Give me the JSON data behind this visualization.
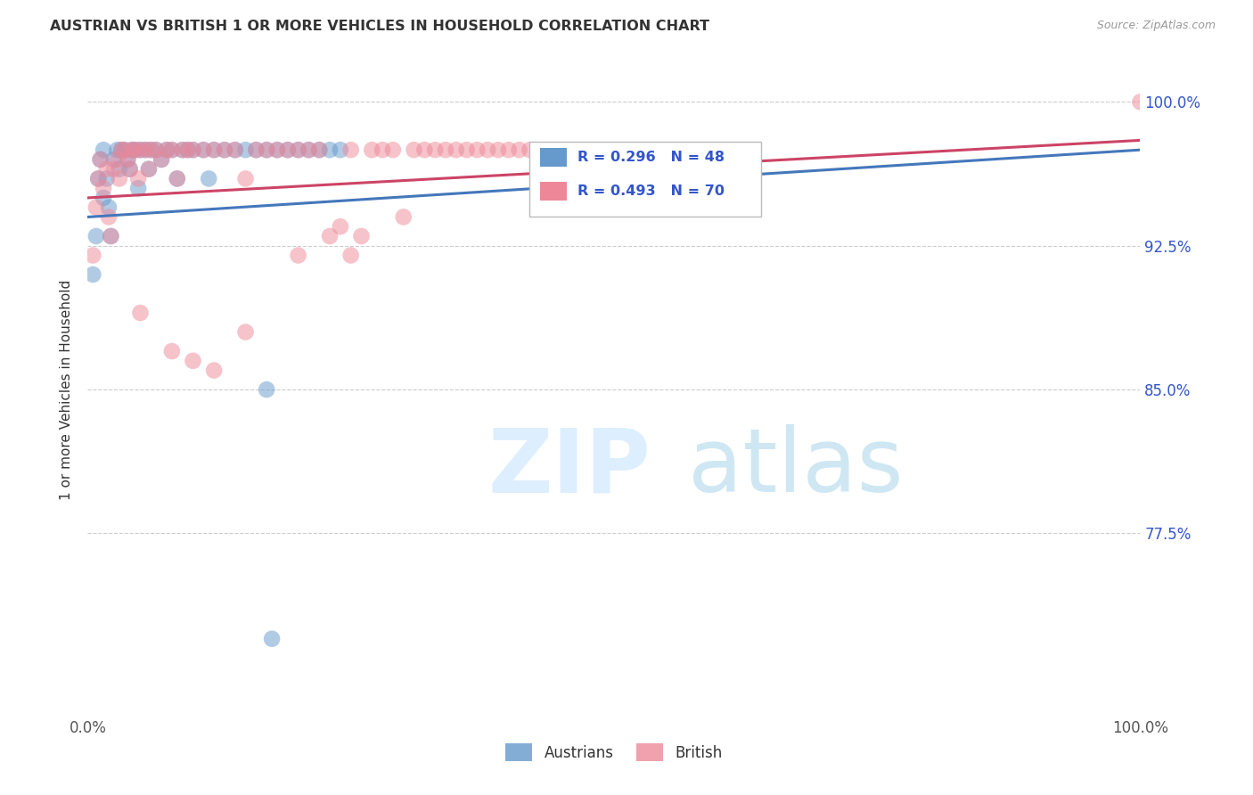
{
  "title": "AUSTRIAN VS BRITISH 1 OR MORE VEHICLES IN HOUSEHOLD CORRELATION CHART",
  "source": "Source: ZipAtlas.com",
  "ylabel": "1 or more Vehicles in Household",
  "xlim": [
    0.0,
    1.0
  ],
  "ylim": [
    0.68,
    1.02
  ],
  "xtick_labels": [
    "0.0%",
    "100.0%"
  ],
  "ytick_labels": [
    "77.5%",
    "85.0%",
    "92.5%",
    "100.0%"
  ],
  "ytick_positions": [
    0.775,
    0.85,
    0.925,
    1.0
  ],
  "xtick_positions": [
    0.0,
    1.0
  ],
  "grid_color": "#cccccc",
  "background_color": "#ffffff",
  "austrians_color": "#6699cc",
  "british_color": "#ee8899",
  "trendline_austrians_color": "#4477bb",
  "trendline_british_color": "#cc4466",
  "legend_text_color": "#3355cc",
  "R_austrians": 0.296,
  "N_austrians": 48,
  "R_british": 0.493,
  "N_british": 70,
  "austrians_x": [
    0.005,
    0.008,
    0.01,
    0.012,
    0.015,
    0.015,
    0.018,
    0.02,
    0.022,
    0.025,
    0.028,
    0.03,
    0.032,
    0.035,
    0.038,
    0.04,
    0.042,
    0.045,
    0.048,
    0.05,
    0.055,
    0.058,
    0.06,
    0.065,
    0.07,
    0.075,
    0.08,
    0.085,
    0.09,
    0.095,
    0.1,
    0.11,
    0.115,
    0.12,
    0.13,
    0.14,
    0.15,
    0.16,
    0.17,
    0.18,
    0.19,
    0.2,
    0.21,
    0.22,
    0.23,
    0.24,
    0.17,
    0.175
  ],
  "austrians_y": [
    0.91,
    0.93,
    0.96,
    0.97,
    0.95,
    0.975,
    0.96,
    0.945,
    0.93,
    0.97,
    0.975,
    0.965,
    0.975,
    0.975,
    0.97,
    0.965,
    0.975,
    0.975,
    0.955,
    0.975,
    0.975,
    0.965,
    0.975,
    0.975,
    0.97,
    0.975,
    0.975,
    0.96,
    0.975,
    0.975,
    0.975,
    0.975,
    0.96,
    0.975,
    0.975,
    0.975,
    0.975,
    0.975,
    0.975,
    0.975,
    0.975,
    0.975,
    0.975,
    0.975,
    0.975,
    0.975,
    0.85,
    0.72
  ],
  "british_x": [
    0.005,
    0.008,
    0.01,
    0.012,
    0.015,
    0.018,
    0.02,
    0.022,
    0.025,
    0.028,
    0.03,
    0.032,
    0.035,
    0.038,
    0.04,
    0.042,
    0.045,
    0.048,
    0.05,
    0.055,
    0.058,
    0.06,
    0.065,
    0.07,
    0.075,
    0.08,
    0.085,
    0.09,
    0.095,
    0.1,
    0.11,
    0.12,
    0.13,
    0.14,
    0.15,
    0.16,
    0.17,
    0.18,
    0.19,
    0.2,
    0.21,
    0.22,
    0.23,
    0.24,
    0.25,
    0.26,
    0.27,
    0.28,
    0.29,
    0.3,
    0.31,
    0.32,
    0.33,
    0.34,
    0.35,
    0.36,
    0.37,
    0.38,
    0.39,
    0.4,
    0.41,
    0.42,
    0.15,
    0.2,
    0.25,
    0.05,
    0.08,
    0.1,
    0.12,
    1.0
  ],
  "british_y": [
    0.92,
    0.945,
    0.96,
    0.97,
    0.955,
    0.965,
    0.94,
    0.93,
    0.965,
    0.97,
    0.96,
    0.975,
    0.975,
    0.97,
    0.965,
    0.975,
    0.975,
    0.96,
    0.975,
    0.975,
    0.965,
    0.975,
    0.975,
    0.97,
    0.975,
    0.975,
    0.96,
    0.975,
    0.975,
    0.975,
    0.975,
    0.975,
    0.975,
    0.975,
    0.96,
    0.975,
    0.975,
    0.975,
    0.975,
    0.975,
    0.975,
    0.975,
    0.93,
    0.935,
    0.975,
    0.93,
    0.975,
    0.975,
    0.975,
    0.94,
    0.975,
    0.975,
    0.975,
    0.975,
    0.975,
    0.975,
    0.975,
    0.975,
    0.975,
    0.975,
    0.975,
    0.975,
    0.88,
    0.92,
    0.92,
    0.89,
    0.87,
    0.865,
    0.86,
    1.0
  ],
  "trendline_austrians_start_x": 0.0,
  "trendline_austrians_start_y": 0.94,
  "trendline_austrians_end_x": 1.0,
  "trendline_austrians_end_y": 0.975,
  "trendline_british_start_x": 0.0,
  "trendline_british_start_y": 0.95,
  "trendline_british_end_x": 1.0,
  "trendline_british_end_y": 0.98
}
